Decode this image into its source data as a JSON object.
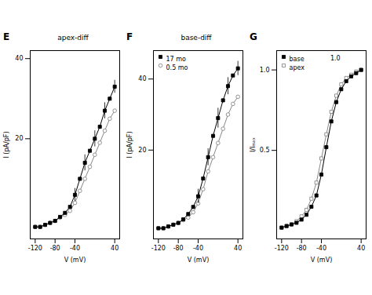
{
  "chart_data": [
    {
      "type": "line",
      "panel": "E",
      "title": "apex-diff",
      "x_label": "V (mV)",
      "y_label": "I (pA/pF)",
      "xlim": [
        -130,
        50
      ],
      "xticks": [
        -120,
        -80,
        -40,
        40
      ],
      "ylim": [
        -5,
        42
      ],
      "yticks": [
        20,
        40
      ],
      "x": [
        -120,
        -110,
        -100,
        -90,
        -80,
        -70,
        -60,
        -50,
        -40,
        -30,
        -20,
        -10,
        0,
        10,
        20,
        30,
        40
      ],
      "series": [
        {
          "color": "#000000",
          "marker": "square",
          "values": [
            -2.0,
            -2.0,
            -1.5,
            -1.0,
            -0.5,
            0.5,
            1.5,
            3.0,
            6.0,
            10.0,
            14.0,
            17.0,
            20.0,
            23.0,
            27.0,
            30.0,
            33.0
          ],
          "errors": [
            null,
            null,
            null,
            null,
            null,
            null,
            null,
            null,
            1.6,
            null,
            2.0,
            null,
            2.0,
            null,
            2.0,
            null,
            1.6
          ]
        },
        {
          "color": "#888888",
          "marker": "circle-open",
          "values": [
            -2.0,
            -2.0,
            -1.5,
            -1.0,
            -0.5,
            0.3,
            1.0,
            2.0,
            4.0,
            7.0,
            10.0,
            13.0,
            16.0,
            19.0,
            22.0,
            25.0,
            27.0
          ]
        }
      ]
    },
    {
      "type": "line",
      "panel": "F",
      "title": "base-diff",
      "x_label": "V (mV)",
      "y_label": "I (pA/pF)",
      "xlim": [
        -130,
        50
      ],
      "xticks": [
        -120,
        -80,
        -40,
        40
      ],
      "ylim": [
        -5,
        48
      ],
      "yticks": [
        20,
        40
      ],
      "legend": "upper left",
      "x": [
        -120,
        -110,
        -100,
        -90,
        -80,
        -70,
        -60,
        -50,
        -40,
        -30,
        -20,
        -10,
        0,
        10,
        20,
        30,
        40
      ],
      "series": [
        {
          "name": "17 mo",
          "color": "#000000",
          "marker": "square",
          "values": [
            -2.0,
            -2.0,
            -1.5,
            -1.0,
            -0.5,
            0.5,
            2.0,
            4.0,
            7.0,
            12.0,
            18.0,
            24.0,
            29.0,
            34.0,
            38.0,
            41.0,
            43.0
          ],
          "errors": [
            null,
            null,
            null,
            null,
            null,
            null,
            null,
            null,
            2.0,
            null,
            2.4,
            null,
            2.8,
            null,
            2.4,
            null,
            2.0
          ]
        },
        {
          "name": "0.5 mo",
          "color": "#888888",
          "marker": "circle-open",
          "values": [
            -2.0,
            -2.0,
            -1.5,
            -1.0,
            -0.5,
            0.3,
            1.0,
            2.5,
            5.0,
            9.0,
            14.0,
            18.0,
            22.0,
            26.0,
            30.0,
            33.0,
            35.0
          ]
        }
      ]
    },
    {
      "type": "line",
      "panel": "G",
      "x_label": "V (mV)",
      "y_label": "I/Iₘₐₓ",
      "xlim": [
        -130,
        50
      ],
      "xticks": [
        -120,
        -80,
        -40,
        40
      ],
      "ylim": [
        -0.05,
        1.12
      ],
      "yticks": [
        0.5,
        {
          "value": 1.0,
          "label": "1.0"
        }
      ],
      "legend": "upper left",
      "annotations": [
        "1.0"
      ],
      "x": [
        -120,
        -110,
        -100,
        -90,
        -80,
        -70,
        -60,
        -50,
        -40,
        -30,
        -20,
        -10,
        0,
        10,
        20,
        30,
        40
      ],
      "series": [
        {
          "name": "base",
          "color": "#000000",
          "marker": "square",
          "values": [
            0.02,
            0.03,
            0.04,
            0.05,
            0.07,
            0.1,
            0.15,
            0.22,
            0.35,
            0.52,
            0.68,
            0.8,
            0.88,
            0.93,
            0.96,
            0.98,
            1.0
          ]
        },
        {
          "name": "apex",
          "color": "#888888",
          "marker": "square-open",
          "values": [
            0.02,
            0.03,
            0.04,
            0.06,
            0.09,
            0.13,
            0.2,
            0.3,
            0.45,
            0.6,
            0.74,
            0.84,
            0.91,
            0.95,
            0.97,
            0.99,
            1.0
          ]
        }
      ]
    }
  ]
}
